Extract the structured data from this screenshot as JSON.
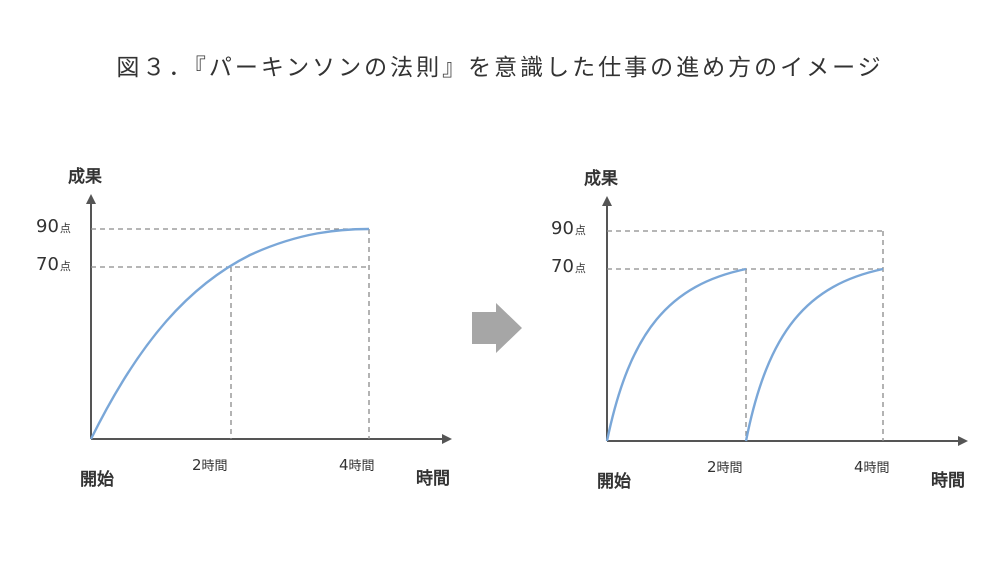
{
  "title": "図３．『パーキンソンの法則』を意識した仕事の進め方のイメージ",
  "left_chart": {
    "y_axis_label": "成果",
    "x_axis_label": "時間",
    "origin_label": "開始",
    "y_ticks": [
      {
        "num": "90",
        "unit": "点"
      },
      {
        "num": "70",
        "unit": "点"
      }
    ],
    "x_ticks": [
      {
        "num": "2",
        "unit": "時間"
      },
      {
        "num": "4",
        "unit": "時間"
      }
    ]
  },
  "right_chart": {
    "y_axis_label": "成果",
    "x_axis_label": "時間",
    "origin_label": "開始",
    "y_ticks": [
      {
        "num": "90",
        "unit": "点"
      },
      {
        "num": "70",
        "unit": "点"
      }
    ],
    "x_ticks": [
      {
        "num": "2",
        "unit": "時間"
      },
      {
        "num": "4",
        "unit": "時間"
      }
    ]
  },
  "colors": {
    "curve": "#7aa7d8",
    "axis": "#555555",
    "guide": "#8a8a8a",
    "arrow": "#a6a6a6"
  },
  "transition_icon": "right-arrow-icon"
}
